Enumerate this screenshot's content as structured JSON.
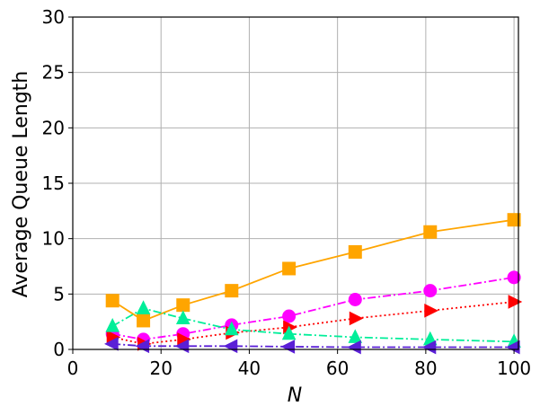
{
  "chart_data": {
    "type": "line",
    "title": "",
    "xlabel": "N",
    "ylabel": "Average Queue Length",
    "xlim": [
      0,
      101
    ],
    "ylim": [
      0,
      30
    ],
    "xticks": [
      0,
      20,
      40,
      60,
      80,
      100
    ],
    "yticks": [
      0,
      5,
      10,
      15,
      20,
      25,
      30
    ],
    "grid": true,
    "x": [
      9,
      16,
      25,
      36,
      49,
      64,
      81,
      100
    ],
    "series": [
      {
        "color": "#ffa500",
        "marker": "square",
        "dash": "solid",
        "values": [
          4.4,
          2.6,
          4.0,
          5.3,
          7.3,
          8.8,
          10.6,
          11.7
        ]
      },
      {
        "color": "#ff00ff",
        "marker": "circle",
        "dash": "dashdot",
        "values": [
          1.4,
          0.9,
          1.4,
          2.2,
          3.0,
          4.5,
          5.3,
          6.5
        ]
      },
      {
        "color": "#ff0000",
        "marker": "triangle-right",
        "dash": "dotted",
        "values": [
          1.1,
          0.5,
          0.9,
          1.5,
          2.0,
          2.8,
          3.5,
          4.3
        ]
      },
      {
        "color": "#00ee99",
        "marker": "triangle-up",
        "dash": "dashdot",
        "values": [
          2.1,
          3.7,
          2.8,
          1.8,
          1.4,
          1.1,
          0.9,
          0.7
        ]
      },
      {
        "color": "#5a1fd6",
        "marker": "triangle-left",
        "dash": "dashdot",
        "values": [
          0.5,
          0.3,
          0.3,
          0.3,
          0.25,
          0.2,
          0.2,
          0.2
        ]
      }
    ]
  }
}
